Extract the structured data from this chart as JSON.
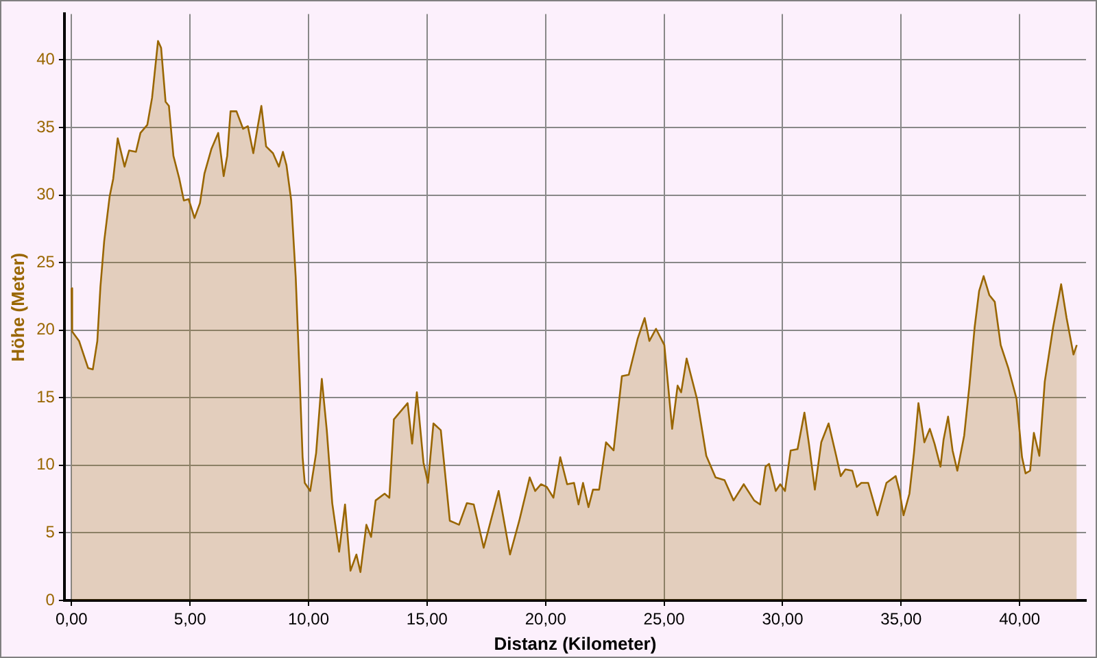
{
  "chart_data": {
    "type": "area",
    "xlabel": "Distanz (Kilometer)",
    "ylabel": "Höhe (Meter)",
    "x": [
      0,
      0.03,
      0.32,
      0.7,
      0.9,
      1.09,
      1.22,
      1.38,
      1.61,
      1.76,
      1.95,
      2.24,
      2.43,
      2.72,
      2.91,
      3.2,
      3.4,
      3.65,
      3.78,
      3.97,
      4.11,
      4.3,
      4.55,
      4.74,
      4.94,
      5.19,
      5.42,
      5.61,
      5.9,
      6.19,
      6.42,
      6.57,
      6.71,
      6.96,
      7.24,
      7.44,
      7.67,
      7.86,
      8.01,
      8.21,
      8.5,
      8.75,
      8.92,
      9.07,
      9.27,
      9.46,
      9.61,
      9.75,
      9.84,
      10.07,
      10.32,
      10.56,
      10.77,
      11.0,
      11.29,
      11.54,
      11.77,
      12.02,
      12.19,
      12.44,
      12.64,
      12.83,
      13.21,
      13.41,
      13.6,
      14.18,
      14.37,
      14.57,
      14.85,
      15.04,
      15.27,
      15.58,
      15.96,
      16.35,
      16.68,
      16.97,
      17.39,
      18.02,
      18.5,
      18.89,
      19.33,
      19.56,
      19.81,
      20.05,
      20.33,
      20.62,
      20.91,
      21.2,
      21.39,
      21.58,
      21.81,
      22.0,
      22.26,
      22.55,
      22.87,
      23.22,
      23.51,
      23.89,
      24.18,
      24.38,
      24.66,
      25.01,
      25.34,
      25.57,
      25.72,
      25.95,
      26.39,
      26.78,
      27.17,
      27.55,
      27.93,
      28.36,
      28.8,
      29.05,
      29.28,
      29.43,
      29.71,
      29.9,
      30.1,
      30.34,
      30.63,
      30.92,
      31.11,
      31.36,
      31.63,
      31.94,
      32.26,
      32.45,
      32.65,
      32.94,
      33.13,
      33.32,
      33.61,
      34.0,
      34.38,
      34.77,
      34.93,
      35.1,
      35.35,
      35.54,
      35.73,
      35.98,
      36.21,
      36.41,
      36.66,
      36.79,
      36.98,
      37.17,
      37.37,
      37.66,
      37.88,
      38.1,
      38.29,
      38.48,
      38.72,
      38.95,
      39.2,
      39.52,
      39.87,
      40.1,
      40.25,
      40.44,
      40.6,
      40.83,
      41.06,
      41.41,
      41.75,
      41.98,
      42.27,
      42.41
    ],
    "series": [
      {
        "color": "#996600",
        "values": [
          23.1,
          19.9,
          19.2,
          17.2,
          17.1,
          19.2,
          23.2,
          26.6,
          29.9,
          31.2,
          34.2,
          32.1,
          33.3,
          33.2,
          34.6,
          35.2,
          37.2,
          41.4,
          40.9,
          36.9,
          36.6,
          32.9,
          31.2,
          29.6,
          29.7,
          28.3,
          29.4,
          31.6,
          33.4,
          34.6,
          31.4,
          32.9,
          36.2,
          36.2,
          34.9,
          35.1,
          33.1,
          35.1,
          36.6,
          33.6,
          33.1,
          32.1,
          33.2,
          32.2,
          29.6,
          23.9,
          17.2,
          10.6,
          8.7,
          8.1,
          10.9,
          16.4,
          12.6,
          7.2,
          3.6,
          7.1,
          2.2,
          3.4,
          2.1,
          5.6,
          4.7,
          7.4,
          7.9,
          7.6,
          13.4,
          14.6,
          11.6,
          15.4,
          10.2,
          8.7,
          13.1,
          12.6,
          5.9,
          5.6,
          7.2,
          7.1,
          3.9,
          8.1,
          3.4,
          5.9,
          9.1,
          8.1,
          8.6,
          8.4,
          7.6,
          10.6,
          8.6,
          8.7,
          7.1,
          8.7,
          6.9,
          8.2,
          8.2,
          11.7,
          11.1,
          16.6,
          16.7,
          19.4,
          20.9,
          19.2,
          20.1,
          18.9,
          12.7,
          15.9,
          15.4,
          17.9,
          14.9,
          10.7,
          9.1,
          8.9,
          7.4,
          8.6,
          7.4,
          7.1,
          9.9,
          10.1,
          8.1,
          8.6,
          8.1,
          11.1,
          11.2,
          13.9,
          11.6,
          8.2,
          11.7,
          13.1,
          10.7,
          9.2,
          9.7,
          9.6,
          8.4,
          8.7,
          8.7,
          6.3,
          8.7,
          9.2,
          8.1,
          6.3,
          7.9,
          10.9,
          14.6,
          11.7,
          12.7,
          11.6,
          9.9,
          11.9,
          13.6,
          11.1,
          9.6,
          12.2,
          15.9,
          20.2,
          22.9,
          24.0,
          22.6,
          22.1,
          18.9,
          17.2,
          14.9,
          10.6,
          9.4,
          9.6,
          12.4,
          10.7,
          16.2,
          20.2,
          23.4,
          20.9,
          18.2,
          18.9
        ]
      }
    ],
    "xlim": [
      -0.3,
      42.8
    ],
    "ylim": [
      0,
      43.4
    ],
    "xticks": [
      {
        "value": 0,
        "label": "0,00"
      },
      {
        "value": 5,
        "label": "5,00"
      },
      {
        "value": 10,
        "label": "10,00"
      },
      {
        "value": 15,
        "label": "15,00"
      },
      {
        "value": 20,
        "label": "20,00"
      },
      {
        "value": 25,
        "label": "25,00"
      },
      {
        "value": 30,
        "label": "30,00"
      },
      {
        "value": 35,
        "label": "35,00"
      },
      {
        "value": 40,
        "label": "40,00"
      }
    ],
    "yticks": [
      0,
      5,
      10,
      15,
      20,
      25,
      30,
      35,
      40
    ],
    "grid": true
  }
}
